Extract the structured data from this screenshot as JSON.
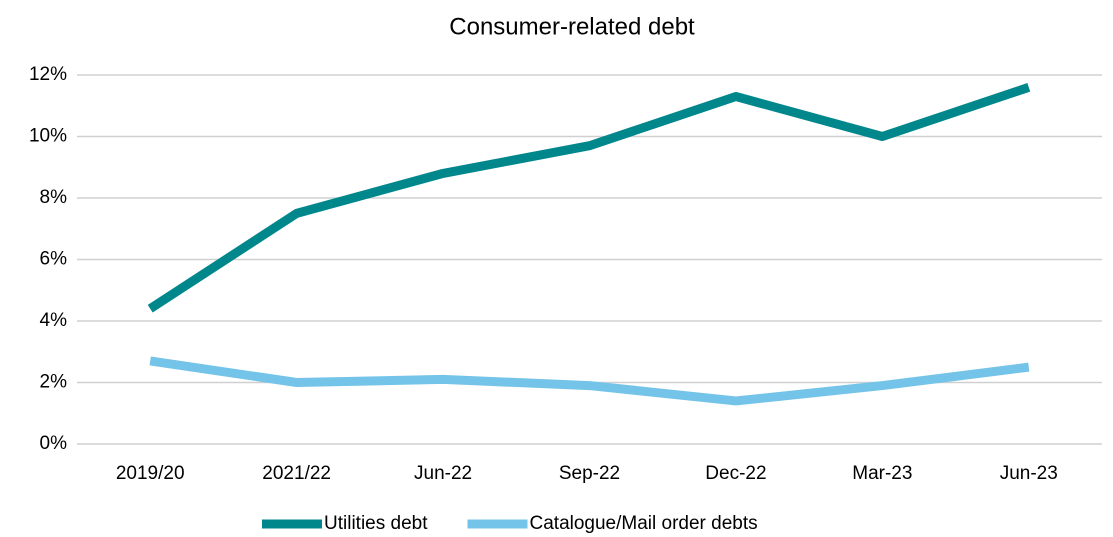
{
  "chart_data": {
    "type": "line",
    "title": "Consumer-related debt",
    "categories": [
      "2019/20",
      "2021/22",
      "Jun-22",
      "Sep-22",
      "Dec-22",
      "Mar-23",
      "Jun-23"
    ],
    "series": [
      {
        "name": "Utilities debt",
        "color": "#00878c",
        "values": [
          4.4,
          7.5,
          8.8,
          9.7,
          11.3,
          10.0,
          11.6
        ]
      },
      {
        "name": "Catalogue/Mail order debts",
        "color": "#74c3e8",
        "values": [
          2.7,
          2.0,
          2.1,
          1.9,
          1.4,
          1.9,
          2.5
        ]
      }
    ],
    "ylim": [
      0,
      12
    ],
    "yticks": [
      {
        "value": 0,
        "label": "0%"
      },
      {
        "value": 2,
        "label": "2%"
      },
      {
        "value": 4,
        "label": "4%"
      },
      {
        "value": 6,
        "label": "6%"
      },
      {
        "value": 8,
        "label": "8%"
      },
      {
        "value": 10,
        "label": "10%"
      },
      {
        "value": 12,
        "label": "12%"
      }
    ],
    "grid": true,
    "legend": "bottom"
  }
}
